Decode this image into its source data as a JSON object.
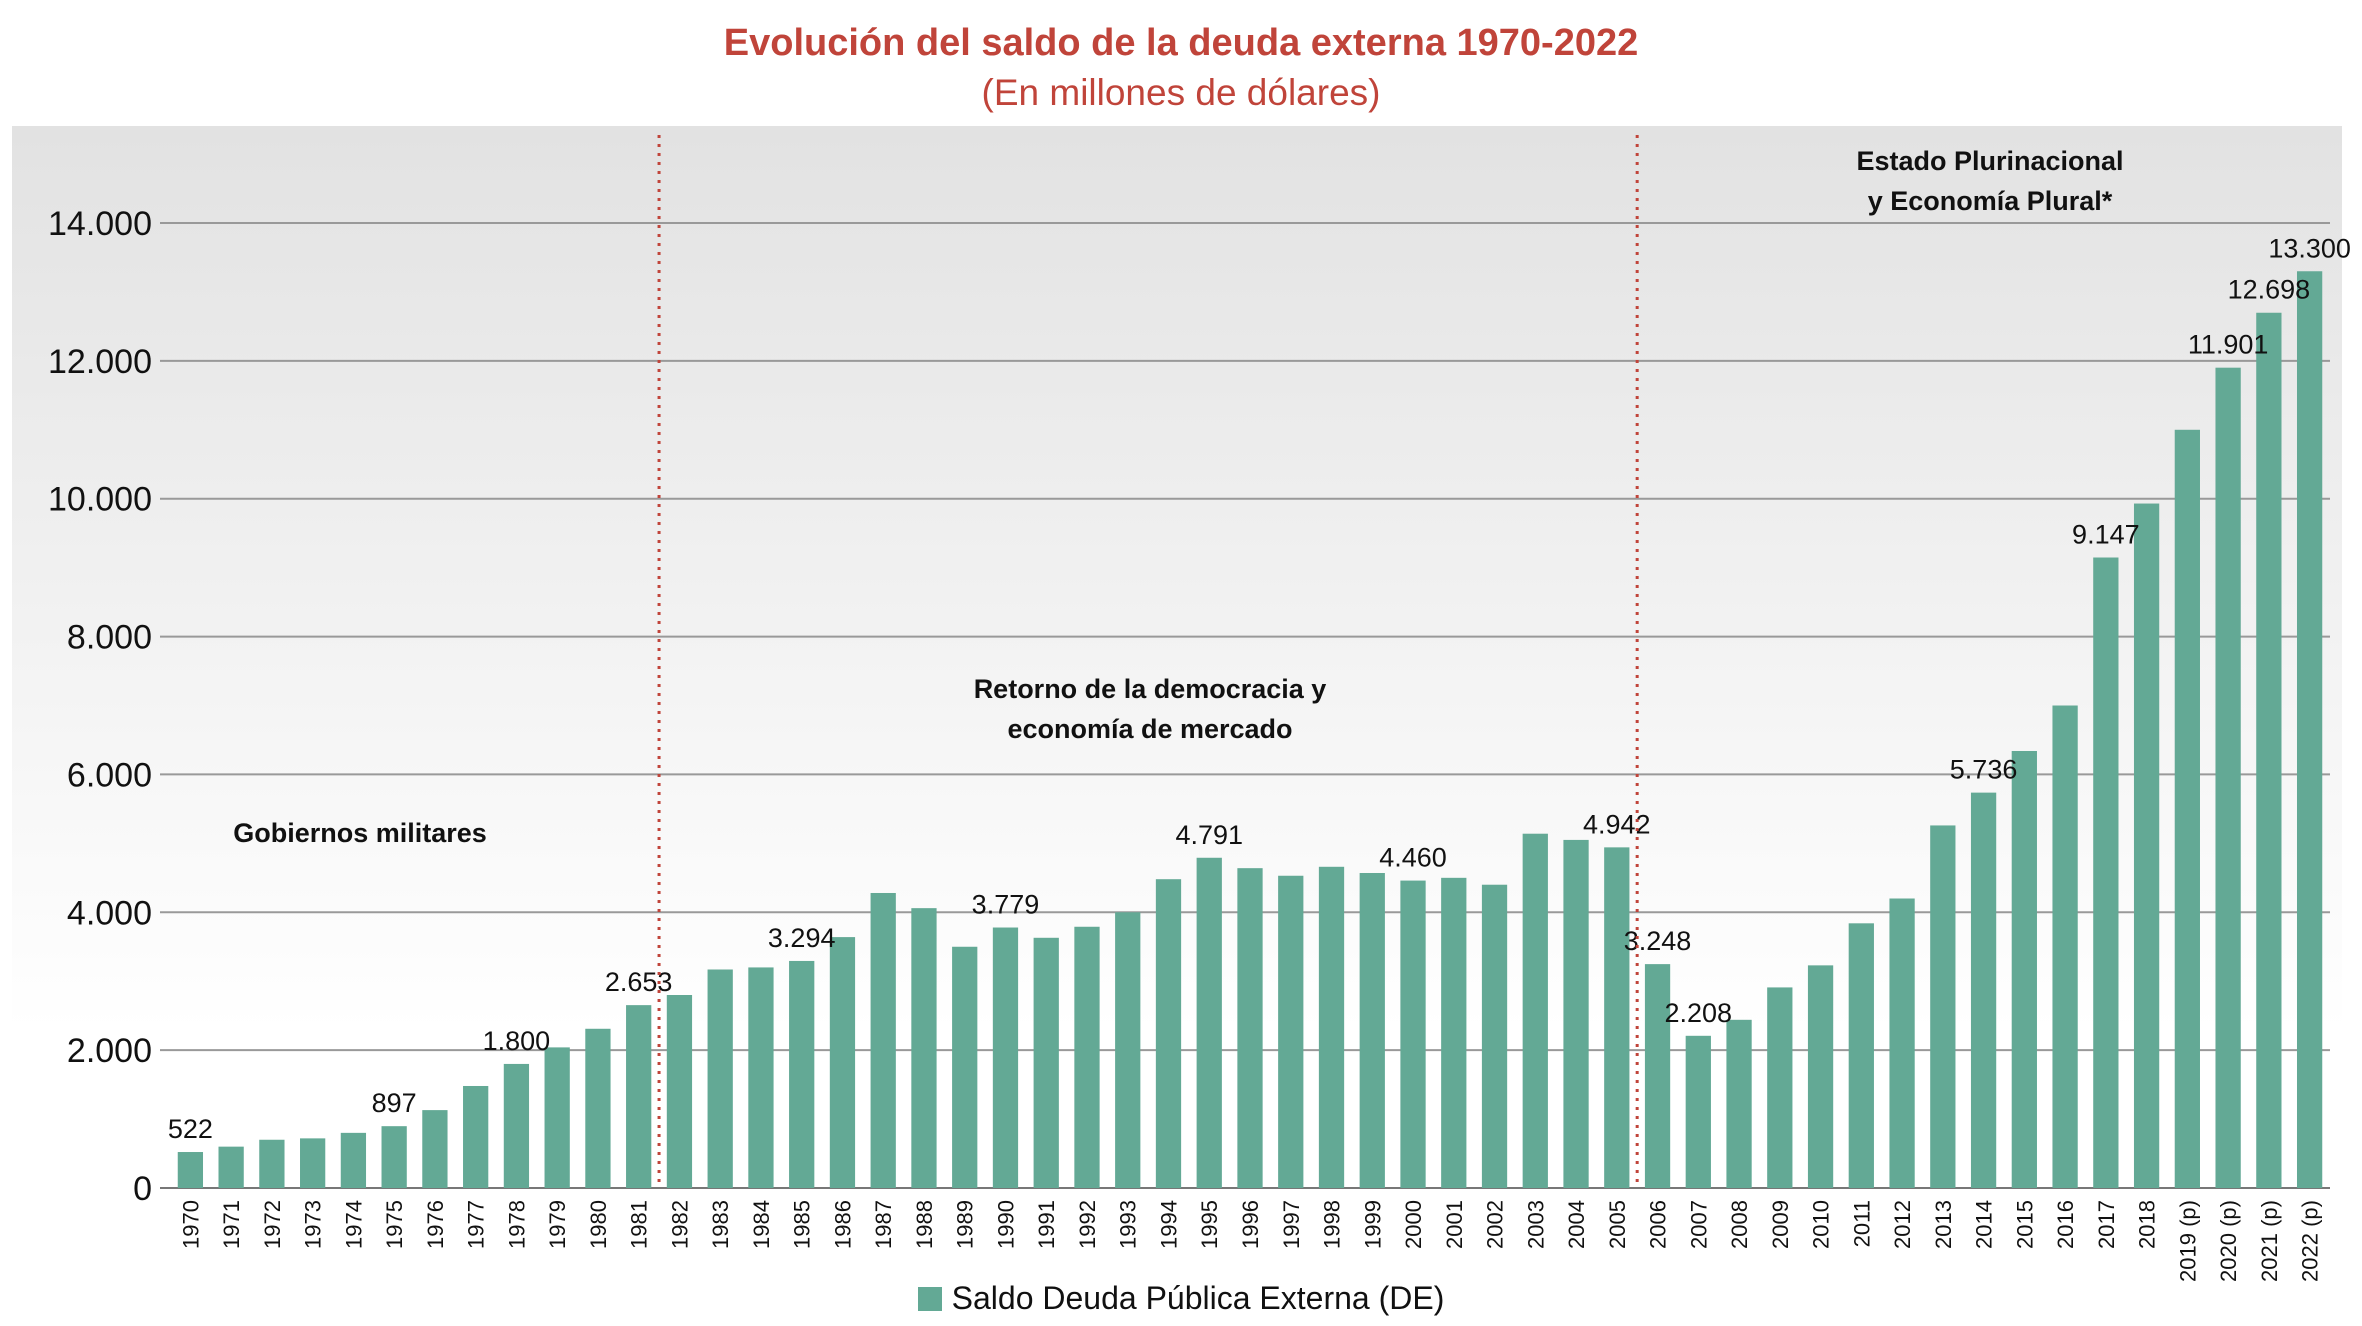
{
  "chart_data": {
    "type": "bar",
    "title": "Evolución del saldo de la deuda externa 1970-2022",
    "subtitle": "(En millones de dólares)",
    "xlabel": "",
    "ylabel": "",
    "ylim": [
      0,
      14000
    ],
    "yticks": [
      0,
      2000,
      4000,
      6000,
      8000,
      10000,
      12000,
      14000
    ],
    "ytick_labels": [
      "0",
      "2.000",
      "4.000",
      "6.000",
      "8.000",
      "10.000",
      "12.000",
      "14.000"
    ],
    "grid": true,
    "bar_color": "#63a995",
    "categories": [
      "1970",
      "1971",
      "1972",
      "1973",
      "1974",
      "1975",
      "1976",
      "1977",
      "1978",
      "1979",
      "1980",
      "1981",
      "1982",
      "1983",
      "1984",
      "1985",
      "1986",
      "1987",
      "1988",
      "1989",
      "1990",
      "1991",
      "1992",
      "1993",
      "1994",
      "1995",
      "1996",
      "1997",
      "1998",
      "1999",
      "2000",
      "2001",
      "2002",
      "2003",
      "2004",
      "2005",
      "2006",
      "2007",
      "2008",
      "2009",
      "2010",
      "2011",
      "2012",
      "2013",
      "2014",
      "2015",
      "2016",
      "2017",
      "2018",
      "2019 (p)",
      "2020 (p)",
      "2021 (p)",
      "2022 (p)"
    ],
    "series": [
      {
        "name": "Saldo Deuda Pública Externa (DE)",
        "values": [
          522,
          600,
          700,
          720,
          800,
          897,
          1130,
          1480,
          1800,
          2040,
          2310,
          2653,
          2800,
          3170,
          3200,
          3294,
          3640,
          4280,
          4060,
          3500,
          3779,
          3630,
          3790,
          4000,
          4480,
          4791,
          4640,
          4530,
          4660,
          4570,
          4460,
          4500,
          4400,
          5140,
          5050,
          4942,
          3248,
          2208,
          2440,
          2910,
          3230,
          3840,
          4200,
          5260,
          5736,
          6340,
          7000,
          9147,
          9930,
          11000,
          11901,
          12698,
          13300
        ]
      }
    ],
    "data_labels": [
      {
        "index": 0,
        "text": "522"
      },
      {
        "index": 5,
        "text": "897"
      },
      {
        "index": 8,
        "text": "1.800"
      },
      {
        "index": 11,
        "text": "2.653"
      },
      {
        "index": 15,
        "text": "3.294"
      },
      {
        "index": 20,
        "text": "3.779"
      },
      {
        "index": 25,
        "text": "4.791"
      },
      {
        "index": 30,
        "text": "4.460"
      },
      {
        "index": 35,
        "text": "4.942"
      },
      {
        "index": 36,
        "text": "3.248"
      },
      {
        "index": 37,
        "text": "2.208"
      },
      {
        "index": 44,
        "text": "5.736"
      },
      {
        "index": 47,
        "text": "9.147"
      },
      {
        "index": 50,
        "text": "11.901"
      },
      {
        "index": 51,
        "text": "12.698"
      },
      {
        "index": 52,
        "text": "13.300"
      }
    ],
    "dividers_after_index": [
      11,
      35
    ],
    "divider_color": "#c0443a",
    "annotations": [
      {
        "id": "gobiernos-militares",
        "lines": [
          "Gobiernos militares"
        ]
      },
      {
        "id": "retorno-democracia",
        "lines": [
          "Retorno de la democracia y",
          "economía de mercado"
        ]
      },
      {
        "id": "estado-plurinacional",
        "lines": [
          "Estado Plurinacional",
          "y Economía Plural*"
        ]
      }
    ],
    "legend": {
      "position": "bottom",
      "entries": [
        "Saldo Deuda Pública Externa (DE)"
      ]
    }
  }
}
